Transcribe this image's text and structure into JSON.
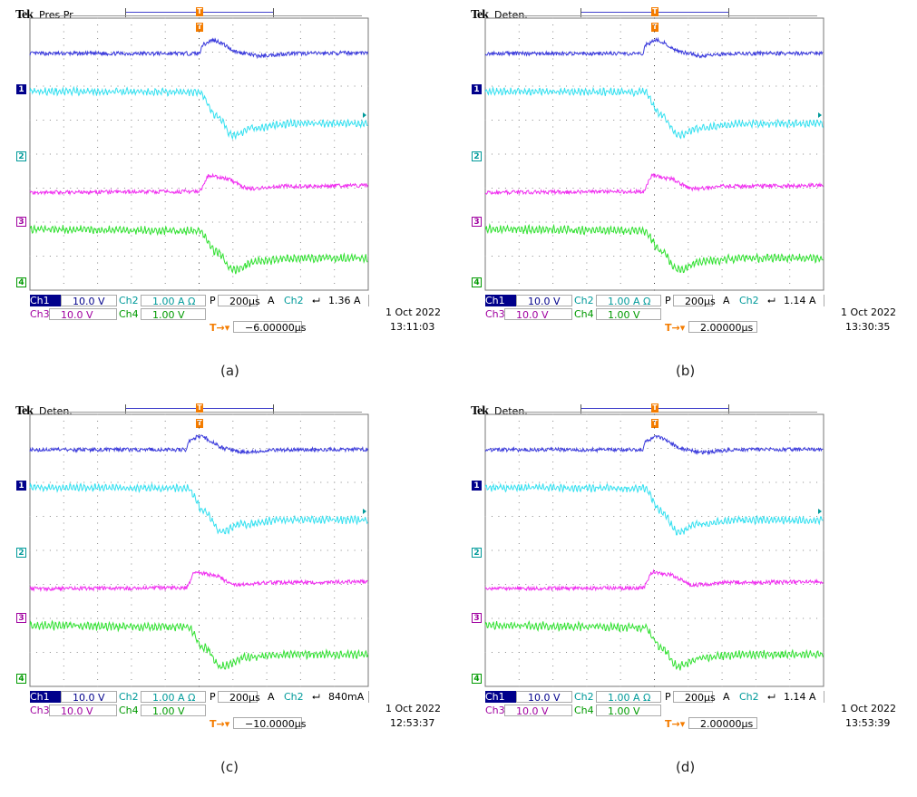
{
  "colors": {
    "ch1": "#3b3bdc",
    "ch2": "#33e0f0",
    "ch3": "#f030f0",
    "ch4": "#30e030",
    "ch1_text": "#00008b",
    "ch2_text": "#009a9a",
    "ch3_text": "#a000a0",
    "ch4_text": "#009a00",
    "trigger": "#f47c00"
  },
  "brand": "Tek",
  "panels": [
    {
      "caption": "(a)",
      "mode": "Pres Pr",
      "ch1_label": "Ch1",
      "ch1_scale": "10.0 V",
      "ch2_label": "Ch2",
      "ch2_scale": "1.00 A Ω",
      "ch3_label": "Ch3",
      "ch3_scale": "10.0 V",
      "ch4_label": "Ch4",
      "ch4_scale": "1.00 V",
      "timebase_prefix": "P",
      "timebase": "200µs",
      "trig_mode": "A",
      "trig_source": "Ch2",
      "trig_slope": "⮠",
      "trig_level": "1.36 A",
      "trig_offset": "−6.00000µs",
      "date": "1 Oct  2022",
      "time": "13:11:03",
      "ground_markers": [
        "1",
        "2",
        "3",
        "4"
      ]
    },
    {
      "caption": "(b)",
      "mode": "Deten.",
      "ch1_label": "Ch1",
      "ch1_scale": "10.0 V",
      "ch2_label": "Ch2",
      "ch2_scale": "1.00 A Ω",
      "ch3_label": "Ch3",
      "ch3_scale": "10.0 V",
      "ch4_label": "Ch4",
      "ch4_scale": "1.00 V",
      "timebase_prefix": "P",
      "timebase": "200µs",
      "trig_mode": "A",
      "trig_source": "Ch2",
      "trig_slope": "⮠",
      "trig_level": "1.14 A",
      "trig_offset": "2.00000µs",
      "date": "1 Oct  2022",
      "time": "13:30:35",
      "ground_markers": [
        "1",
        "2",
        "3",
        "4"
      ]
    },
    {
      "caption": "(c)",
      "mode": "Deten.",
      "ch1_label": "Ch1",
      "ch1_scale": "10.0 V",
      "ch2_label": "Ch2",
      "ch2_scale": "1.00 A Ω",
      "ch3_label": "Ch3",
      "ch3_scale": "10.0 V",
      "ch4_label": "Ch4",
      "ch4_scale": "1.00 V",
      "timebase_prefix": "P",
      "timebase": "200µs",
      "trig_mode": "A",
      "trig_source": "Ch2",
      "trig_slope": "⮠",
      "trig_level": "840mA",
      "trig_offset": "−10.0000µs",
      "date": "1 Oct  2022",
      "time": "12:53:37",
      "ground_markers": [
        "1",
        "2",
        "3",
        "4"
      ]
    },
    {
      "caption": "(d)",
      "mode": "Deten.",
      "ch1_label": "Ch1",
      "ch1_scale": "10.0 V",
      "ch2_label": "Ch2",
      "ch2_scale": "1.00 A Ω",
      "ch3_label": "Ch3",
      "ch3_scale": "10.0 V",
      "ch4_label": "Ch4",
      "ch4_scale": "1.00 V",
      "timebase_prefix": "P",
      "timebase": "200µs",
      "trig_mode": "A",
      "trig_source": "Ch2",
      "trig_slope": "⮠",
      "trig_level": "1.14 A",
      "trig_offset": "2.00000µs",
      "date": "1 Oct  2022",
      "time": "13:53:39",
      "ground_markers": [
        "1",
        "2",
        "3",
        "4"
      ]
    }
  ],
  "chart_data": [
    {
      "type": "line",
      "panel": "(a)",
      "x_unit": "µs",
      "xlim": [
        -1000,
        1000
      ],
      "divisions": [
        10,
        8
      ],
      "grid": true,
      "series": [
        {
          "channel": "Ch1",
          "unit": "V",
          "points": [
            [
              -1000,
              10.4
            ],
            [
              0,
              10.4
            ],
            [
              20,
              13
            ],
            [
              80,
              14.3
            ],
            [
              250,
              10.6
            ],
            [
              350,
              9.7
            ],
            [
              550,
              10.4
            ],
            [
              1000,
              10.6
            ]
          ]
        },
        {
          "channel": "Ch2",
          "unit": "A",
          "points": [
            [
              -1000,
              1.9
            ],
            [
              0,
              1.88
            ],
            [
              100,
              1.2
            ],
            [
              200,
              0.6
            ],
            [
              320,
              0.82
            ],
            [
              550,
              0.95
            ],
            [
              1000,
              0.95
            ]
          ]
        },
        {
          "channel": "Ch3",
          "unit": "V",
          "points": [
            [
              -1000,
              8.5
            ],
            [
              0,
              8.7
            ],
            [
              60,
              13.4
            ],
            [
              150,
              12.6
            ],
            [
              300,
              9.6
            ],
            [
              500,
              10.3
            ],
            [
              1000,
              10.5
            ]
          ]
        },
        {
          "channel": "Ch4",
          "unit": "V",
          "points": [
            [
              -1000,
              1.55
            ],
            [
              0,
              1.5
            ],
            [
              100,
              0.9
            ],
            [
              200,
              0.35
            ],
            [
              350,
              0.62
            ],
            [
              600,
              0.7
            ],
            [
              1000,
              0.7
            ]
          ]
        }
      ]
    },
    {
      "type": "line",
      "panel": "(b)",
      "x_unit": "µs",
      "xlim": [
        -1000,
        1000
      ],
      "divisions": [
        10,
        8
      ],
      "grid": true,
      "series": [
        {
          "channel": "Ch1",
          "unit": "V",
          "points": [
            [
              -1000,
              10.4
            ],
            [
              -70,
              10.4
            ],
            [
              -50,
              13
            ],
            [
              10,
              14.3
            ],
            [
              180,
              10.6
            ],
            [
              280,
              9.7
            ],
            [
              480,
              10.4
            ],
            [
              1000,
              10.5
            ]
          ]
        },
        {
          "channel": "Ch2",
          "unit": "A",
          "points": [
            [
              -1000,
              1.9
            ],
            [
              -60,
              1.88
            ],
            [
              40,
              1.2
            ],
            [
              140,
              0.6
            ],
            [
              260,
              0.82
            ],
            [
              500,
              0.95
            ],
            [
              1000,
              0.95
            ]
          ]
        },
        {
          "channel": "Ch3",
          "unit": "V",
          "points": [
            [
              -1000,
              8.5
            ],
            [
              -70,
              8.7
            ],
            [
              -10,
              13.4
            ],
            [
              80,
              12.6
            ],
            [
              230,
              9.6
            ],
            [
              430,
              10.3
            ],
            [
              1000,
              10.5
            ]
          ]
        },
        {
          "channel": "Ch4",
          "unit": "V",
          "points": [
            [
              -1000,
              1.55
            ],
            [
              -60,
              1.5
            ],
            [
              40,
              0.9
            ],
            [
              140,
              0.35
            ],
            [
              290,
              0.62
            ],
            [
              540,
              0.7
            ],
            [
              1000,
              0.7
            ]
          ]
        }
      ]
    },
    {
      "type": "line",
      "panel": "(c)",
      "x_unit": "µs",
      "xlim": [
        -1000,
        1000
      ],
      "divisions": [
        10,
        8
      ],
      "grid": true,
      "series": [
        {
          "channel": "Ch1",
          "unit": "V",
          "points": [
            [
              -1000,
              10.4
            ],
            [
              -80,
              10.4
            ],
            [
              -60,
              13
            ],
            [
              0,
              14.3
            ],
            [
              170,
              10.6
            ],
            [
              270,
              9.7
            ],
            [
              470,
              10.4
            ],
            [
              1000,
              10.5
            ]
          ]
        },
        {
          "channel": "Ch2",
          "unit": "A",
          "points": [
            [
              -1000,
              1.9
            ],
            [
              -70,
              1.88
            ],
            [
              30,
              1.2
            ],
            [
              130,
              0.6
            ],
            [
              250,
              0.82
            ],
            [
              490,
              0.95
            ],
            [
              1000,
              0.95
            ]
          ]
        },
        {
          "channel": "Ch3",
          "unit": "V",
          "points": [
            [
              -1000,
              8.5
            ],
            [
              -80,
              8.7
            ],
            [
              -20,
              13.4
            ],
            [
              70,
              12.6
            ],
            [
              220,
              9.6
            ],
            [
              420,
              10.3
            ],
            [
              1000,
              10.5
            ]
          ]
        },
        {
          "channel": "Ch4",
          "unit": "V",
          "points": [
            [
              -1000,
              1.55
            ],
            [
              -70,
              1.5
            ],
            [
              30,
              0.9
            ],
            [
              130,
              0.35
            ],
            [
              280,
              0.62
            ],
            [
              530,
              0.7
            ],
            [
              1000,
              0.7
            ]
          ]
        }
      ]
    },
    {
      "type": "line",
      "panel": "(d)",
      "x_unit": "µs",
      "xlim": [
        -1000,
        1000
      ],
      "divisions": [
        10,
        8
      ],
      "grid": true,
      "series": [
        {
          "channel": "Ch1",
          "unit": "V",
          "points": [
            [
              -1000,
              10.4
            ],
            [
              -70,
              10.4
            ],
            [
              -50,
              13
            ],
            [
              10,
              14.3
            ],
            [
              180,
              10.6
            ],
            [
              280,
              9.7
            ],
            [
              480,
              10.4
            ],
            [
              1000,
              10.5
            ]
          ]
        },
        {
          "channel": "Ch2",
          "unit": "A",
          "points": [
            [
              -1000,
              1.9
            ],
            [
              -60,
              1.88
            ],
            [
              40,
              1.2
            ],
            [
              140,
              0.6
            ],
            [
              260,
              0.82
            ],
            [
              500,
              0.95
            ],
            [
              1000,
              0.95
            ]
          ]
        },
        {
          "channel": "Ch3",
          "unit": "V",
          "points": [
            [
              -1000,
              8.5
            ],
            [
              -70,
              8.7
            ],
            [
              -10,
              13.4
            ],
            [
              80,
              12.6
            ],
            [
              230,
              9.6
            ],
            [
              430,
              10.3
            ],
            [
              1000,
              10.5
            ]
          ]
        },
        {
          "channel": "Ch4",
          "unit": "V",
          "points": [
            [
              -1000,
              1.55
            ],
            [
              -60,
              1.5
            ],
            [
              40,
              0.9
            ],
            [
              140,
              0.35
            ],
            [
              290,
              0.62
            ],
            [
              540,
              0.7
            ],
            [
              1000,
              0.7
            ]
          ]
        }
      ]
    }
  ]
}
